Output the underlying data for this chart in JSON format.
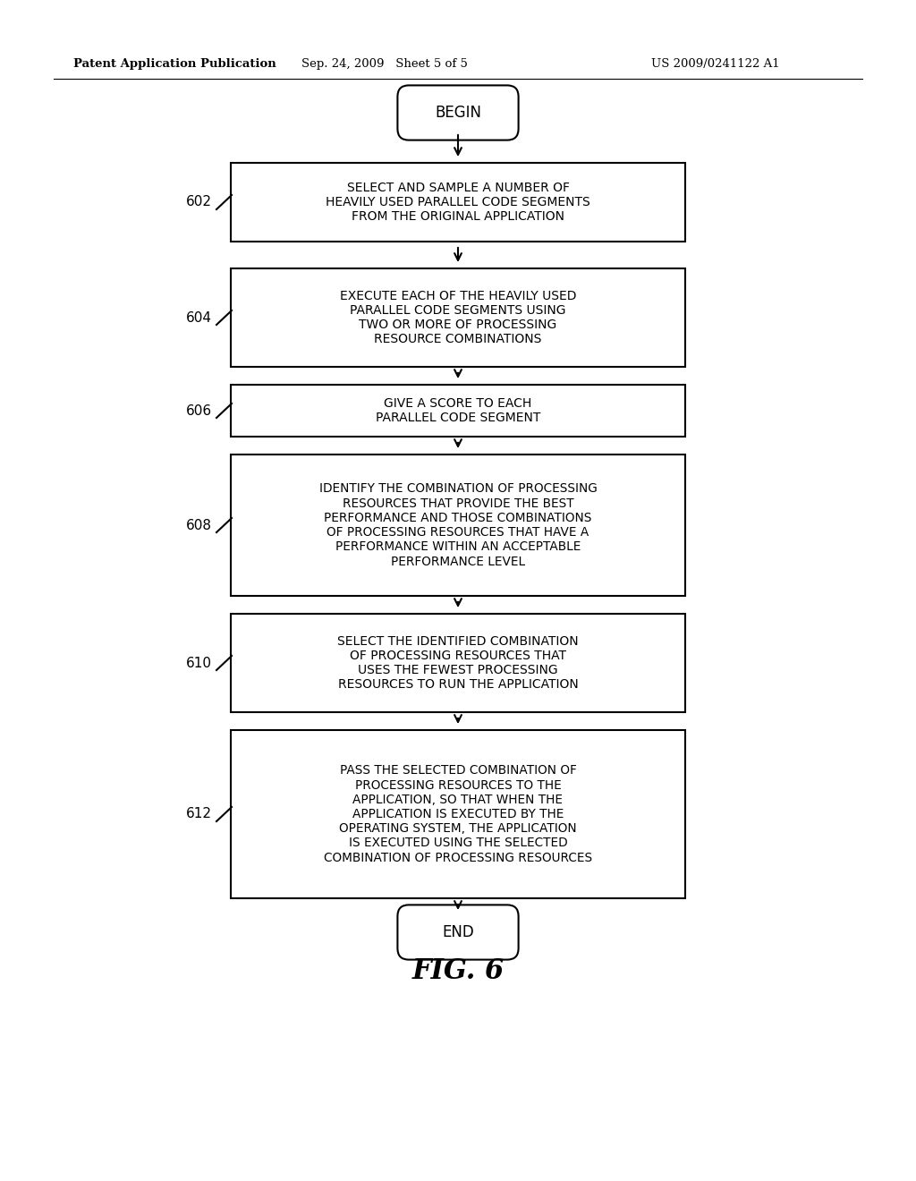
{
  "bg_color": "#ffffff",
  "header_left": "Patent Application Publication",
  "header_mid": "Sep. 24, 2009   Sheet 5 of 5",
  "header_right": "US 2009/0241122 A1",
  "fig_label": "FIG. 6",
  "begin_text": "BEGIN",
  "end_text": "END",
  "boxes": [
    {
      "id": "602",
      "label": "SELECT AND SAMPLE A NUMBER OF\nHEAVILY USED PARALLEL CODE SEGMENTS\nFROM THE ORIGINAL APPLICATION"
    },
    {
      "id": "604",
      "label": "EXECUTE EACH OF THE HEAVILY USED\nPARALLEL CODE SEGMENTS USING\nTWO OR MORE OF PROCESSING\nRESOURCE COMBINATIONS"
    },
    {
      "id": "606",
      "label": "GIVE A SCORE TO EACH\nPARALLEL CODE SEGMENT"
    },
    {
      "id": "608",
      "label": "IDENTIFY THE COMBINATION OF PROCESSING\nRESOURCES THAT PROVIDE THE BEST\nPERFORMANCE AND THOSE COMBINATIONS\nOF PROCESSING RESOURCES THAT HAVE A\nPERFORMANCE WITHIN AN ACCEPTABLE\nPERFORMANCE LEVEL"
    },
    {
      "id": "610",
      "label": "SELECT THE IDENTIFIED COMBINATION\nOF PROCESSING RESOURCES THAT\nUSES THE FEWEST PROCESSING\nRESOURCES TO RUN THE APPLICATION"
    },
    {
      "id": "612",
      "label": "PASS THE SELECTED COMBINATION OF\nPROCESSING RESOURCES TO THE\nAPPLICATION, SO THAT WHEN THE\nAPPLICATION IS EXECUTED BY THE\nOPERATING SYSTEM, THE APPLICATION\nIS EXECUTED USING THE SELECTED\nCOMBINATION OF PROCESSING RESOURCES"
    }
  ],
  "box_color": "#ffffff",
  "box_edge_color": "#000000",
  "text_color": "#000000",
  "arrow_color": "#000000",
  "fig_width": 10.24,
  "fig_height": 13.2,
  "dpi": 100
}
